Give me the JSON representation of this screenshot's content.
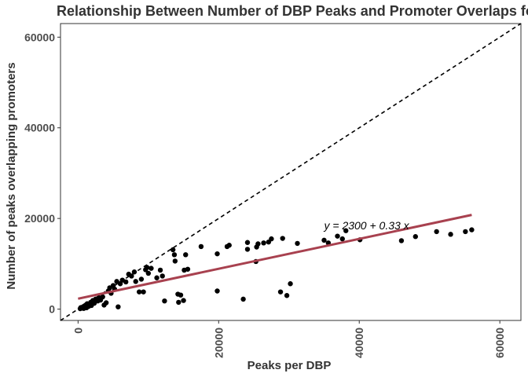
{
  "chart_data": {
    "type": "scatter",
    "title": "Relationship Between Number of DBP Peaks and Promoter Overlaps fo",
    "xlabel": "Peaks per DBP",
    "ylabel": "Number of peaks overlapping promoters",
    "xlim": [
      -2500,
      63000
    ],
    "ylim": [
      -2500,
      63000
    ],
    "x_ticks": [
      0,
      20000,
      40000,
      60000
    ],
    "y_ticks": [
      0,
      20000,
      40000,
      60000
    ],
    "grid": false,
    "annotation": "y = 2300 + 0.33 x",
    "fit_line": {
      "intercept": 2300,
      "slope": 0.33,
      "x_range": [
        0,
        56000
      ],
      "color": "#a8414f"
    },
    "identity_line": {
      "slope": 1,
      "intercept": 0,
      "style": "dashed",
      "color": "#000000"
    },
    "points": [
      [
        300,
        100
      ],
      [
        400,
        350
      ],
      [
        600,
        250
      ],
      [
        700,
        500
      ],
      [
        800,
        150
      ],
      [
        900,
        700
      ],
      [
        1000,
        450
      ],
      [
        1100,
        900
      ],
      [
        1200,
        300
      ],
      [
        1300,
        1200
      ],
      [
        1500,
        600
      ],
      [
        1600,
        1000
      ],
      [
        1800,
        1500
      ],
      [
        1900,
        800
      ],
      [
        2100,
        1900
      ],
      [
        2300,
        1300
      ],
      [
        2500,
        2200
      ],
      [
        2800,
        1800
      ],
      [
        3000,
        2500
      ],
      [
        3200,
        2000
      ],
      [
        3500,
        2700
      ],
      [
        3700,
        900
      ],
      [
        4000,
        1400
      ],
      [
        4300,
        4000
      ],
      [
        4500,
        4700
      ],
      [
        4700,
        3500
      ],
      [
        5000,
        5200
      ],
      [
        5200,
        4400
      ],
      [
        5500,
        6100
      ],
      [
        5700,
        500
      ],
      [
        6000,
        5600
      ],
      [
        6300,
        6400
      ],
      [
        6800,
        6000
      ],
      [
        7200,
        7700
      ],
      [
        7600,
        7300
      ],
      [
        8000,
        8200
      ],
      [
        8200,
        6100
      ],
      [
        8700,
        3800
      ],
      [
        9000,
        6600
      ],
      [
        9300,
        3800
      ],
      [
        9600,
        8700
      ],
      [
        9800,
        9200
      ],
      [
        10000,
        7900
      ],
      [
        10400,
        9000
      ],
      [
        11200,
        6900
      ],
      [
        11700,
        8600
      ],
      [
        12000,
        7300
      ],
      [
        12300,
        1800
      ],
      [
        13500,
        13100
      ],
      [
        13700,
        12000
      ],
      [
        13800,
        10600
      ],
      [
        14200,
        3300
      ],
      [
        14300,
        1500
      ],
      [
        14600,
        3100
      ],
      [
        15000,
        1900
      ],
      [
        15100,
        8600
      ],
      [
        15300,
        12000
      ],
      [
        15600,
        8800
      ],
      [
        17500,
        13800
      ],
      [
        19800,
        4000
      ],
      [
        19800,
        12200
      ],
      [
        21200,
        13800
      ],
      [
        21500,
        14100
      ],
      [
        23500,
        2200
      ],
      [
        24100,
        13200
      ],
      [
        24100,
        14700
      ],
      [
        25300,
        10500
      ],
      [
        25400,
        13700
      ],
      [
        25600,
        14400
      ],
      [
        26400,
        14600
      ],
      [
        27100,
        14800
      ],
      [
        27500,
        15500
      ],
      [
        28800,
        3800
      ],
      [
        29100,
        15600
      ],
      [
        29700,
        3000
      ],
      [
        30200,
        5600
      ],
      [
        31200,
        14500
      ],
      [
        35000,
        15200
      ],
      [
        35600,
        14600
      ],
      [
        36900,
        16100
      ],
      [
        37600,
        15500
      ],
      [
        38100,
        17300
      ],
      [
        40100,
        15300
      ],
      [
        46000,
        15100
      ],
      [
        48000,
        16000
      ],
      [
        51000,
        17100
      ],
      [
        53000,
        16500
      ],
      [
        55100,
        17100
      ],
      [
        56000,
        17500
      ]
    ]
  }
}
